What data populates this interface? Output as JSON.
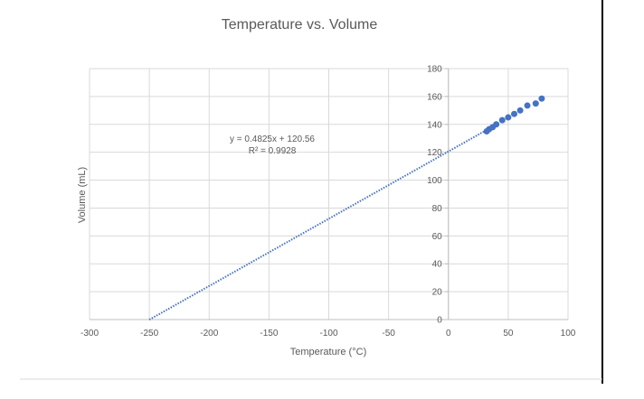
{
  "chart_data": {
    "type": "scatter",
    "title": "Temperature vs. Volume",
    "xlabel": "Temperature (°C)",
    "ylabel": "Volume (mL)",
    "xlim": [
      -300,
      100
    ],
    "ylim": [
      0,
      180
    ],
    "x_ticks": [
      -300,
      -250,
      -200,
      -150,
      -100,
      -50,
      0,
      50,
      100
    ],
    "y_ticks": [
      0,
      20,
      40,
      60,
      80,
      100,
      120,
      140,
      160,
      180
    ],
    "grid": true,
    "legend": "none",
    "series": [
      {
        "x": [
          32,
          34,
          37,
          40,
          45,
          50,
          55,
          60,
          66,
          73,
          78
        ],
        "y": [
          135,
          136.5,
          138,
          140,
          143,
          145,
          147.5,
          150,
          153.5,
          155,
          158.5
        ],
        "color": "#4472C4"
      }
    ],
    "trendline": {
      "type": "linear",
      "slope": 0.4825,
      "intercept": 120.56,
      "x_range": [
        -250,
        32
      ],
      "equation_label": "y = 0.4825x + 120.56",
      "r2_label": "R² = 0.9928",
      "color": "#4472C4",
      "style": "dotted"
    }
  }
}
